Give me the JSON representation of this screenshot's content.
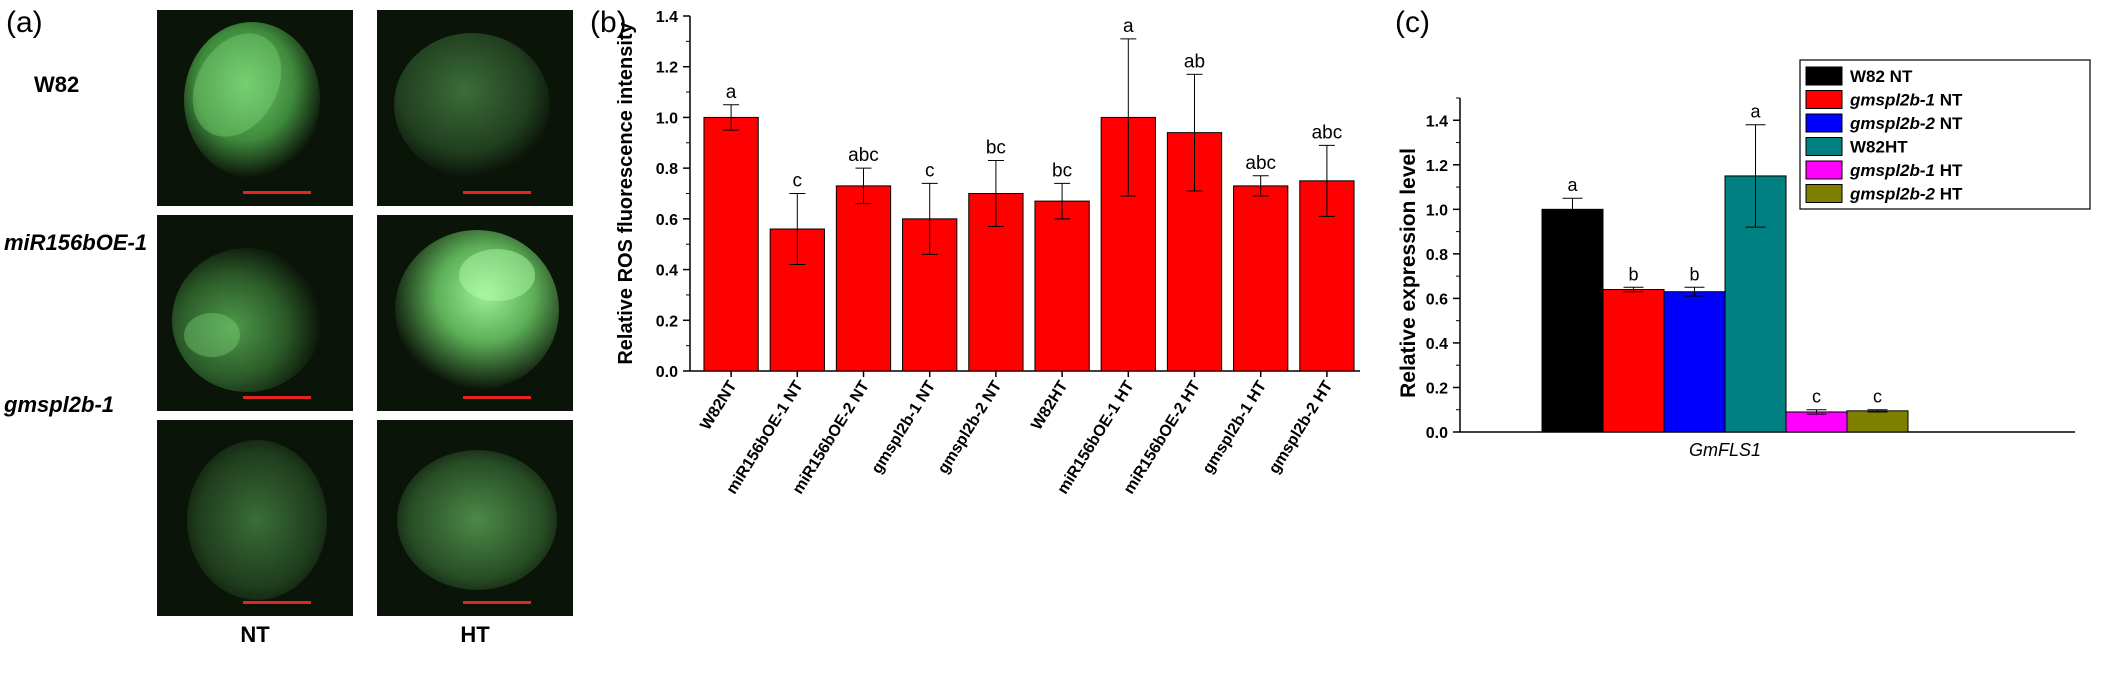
{
  "panel_a": {
    "letter": "(a)",
    "rows": [
      "W82",
      "miR156bOE-1",
      "gmspl2b-1"
    ],
    "columns": [
      "NT",
      "HT"
    ],
    "scale_bar_color": "#e0261e",
    "fluorescence_color": "#7ed87a"
  },
  "chart_data": [
    {
      "panel": "(b)",
      "type": "bar",
      "ylabel": "Relative ROS fluorescence intensity",
      "ylim": [
        0.0,
        1.4
      ],
      "yticks": [
        "0.0",
        "0.2",
        "0.4",
        "0.6",
        "0.8",
        "1.0",
        "1.2",
        "1.4"
      ],
      "bar_color": "#ff0000",
      "categories": [
        "W82NT",
        "miR156bOE-1 NT",
        "miR156bOE-2 NT",
        "gmspl2b-1 NT",
        "gmspl2b-2 NT",
        "W82HT",
        "miR156bOE-1 HT",
        "miR156bOE-2 HT",
        "gmspl2b-1 HT",
        "gmspl2b-2 HT"
      ],
      "values": [
        1.0,
        0.56,
        0.73,
        0.6,
        0.7,
        0.67,
        1.0,
        0.94,
        0.73,
        0.75
      ],
      "errors": [
        0.05,
        0.14,
        0.07,
        0.14,
        0.13,
        0.07,
        0.31,
        0.23,
        0.04,
        0.14
      ],
      "annotations": [
        "a",
        "c",
        "abc",
        "c",
        "bc",
        "bc",
        "a",
        "ab",
        "abc",
        "abc"
      ]
    },
    {
      "panel": "(c)",
      "type": "bar",
      "ylabel": "Relative expression level",
      "xcategory": "GmFLS1",
      "ylim": [
        0.0,
        1.5
      ],
      "yticks": [
        "0.0",
        "0.2",
        "0.4",
        "0.6",
        "0.8",
        "1.0",
        "1.2",
        "1.4"
      ],
      "legend_position": "top-right",
      "series": [
        {
          "name": "W82 NT",
          "name_italic": "",
          "name_suffix": "W82 NT",
          "color": "#000000",
          "value": 1.0,
          "error": 0.05,
          "annotation": "a"
        },
        {
          "name": "gmspl2b-1 NT",
          "name_italic": "gmspl2b-1",
          "name_suffix": " NT",
          "color": "#ff0000",
          "value": 0.64,
          "error": 0.01,
          "annotation": "b"
        },
        {
          "name": "gmspl2b-2 NT",
          "name_italic": "gmspl2b-2",
          "name_suffix": " NT",
          "color": "#0000ff",
          "value": 0.63,
          "error": 0.02,
          "annotation": "b"
        },
        {
          "name": "W82HT",
          "name_italic": "",
          "name_suffix": "W82HT",
          "color": "#008080",
          "value": 1.15,
          "error": 0.23,
          "annotation": "a"
        },
        {
          "name": "gmspl2b-1 HT",
          "name_italic": "gmspl2b-1",
          "name_suffix": " HT",
          "color": "#ff00ff",
          "value": 0.09,
          "error": 0.01,
          "annotation": "c"
        },
        {
          "name": "gmspl2b-2 HT",
          "name_italic": "gmspl2b-2",
          "name_suffix": " HT",
          "color": "#808000",
          "value": 0.095,
          "error": 0.005,
          "annotation": "c"
        }
      ]
    }
  ]
}
